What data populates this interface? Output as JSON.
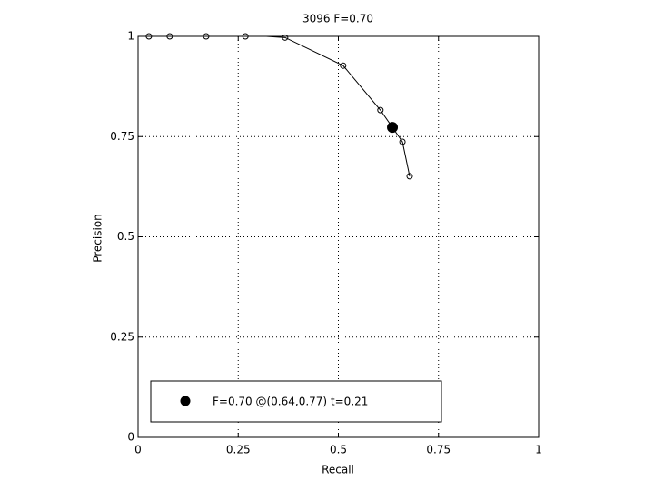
{
  "chart_data": {
    "type": "scatter",
    "title": "3096 F=0.70",
    "x_label": "Recall",
    "y_label": "Precision",
    "xlim": [
      0,
      1
    ],
    "ylim": [
      0,
      1
    ],
    "xticks": [
      0,
      0.25,
      0.5,
      0.75,
      1
    ],
    "yticks": [
      0,
      0.25,
      0.5,
      0.75,
      1
    ],
    "grid": true,
    "series": [
      {
        "style": "line",
        "color": "#000000",
        "x": [
          0.32,
          0.367,
          0.512,
          0.605,
          0.66,
          0.678
        ],
        "values": [
          1,
          0.997,
          0.927,
          0.816,
          0.737,
          0.651
        ]
      },
      {
        "style": "open-circle",
        "color": "#000000",
        "x": [
          0.027,
          0.079,
          0.17,
          0.268,
          0.367,
          0.512,
          0.605,
          0.66,
          0.678
        ],
        "values": [
          1,
          1,
          1,
          1,
          0.997,
          0.927,
          0.816,
          0.737,
          0.651
        ]
      },
      {
        "style": "filled-circle",
        "color": "#000000",
        "name": "F=0.70 @(0.64,0.77) t=0.21",
        "x": [
          0.635
        ],
        "values": [
          0.773
        ]
      }
    ]
  }
}
